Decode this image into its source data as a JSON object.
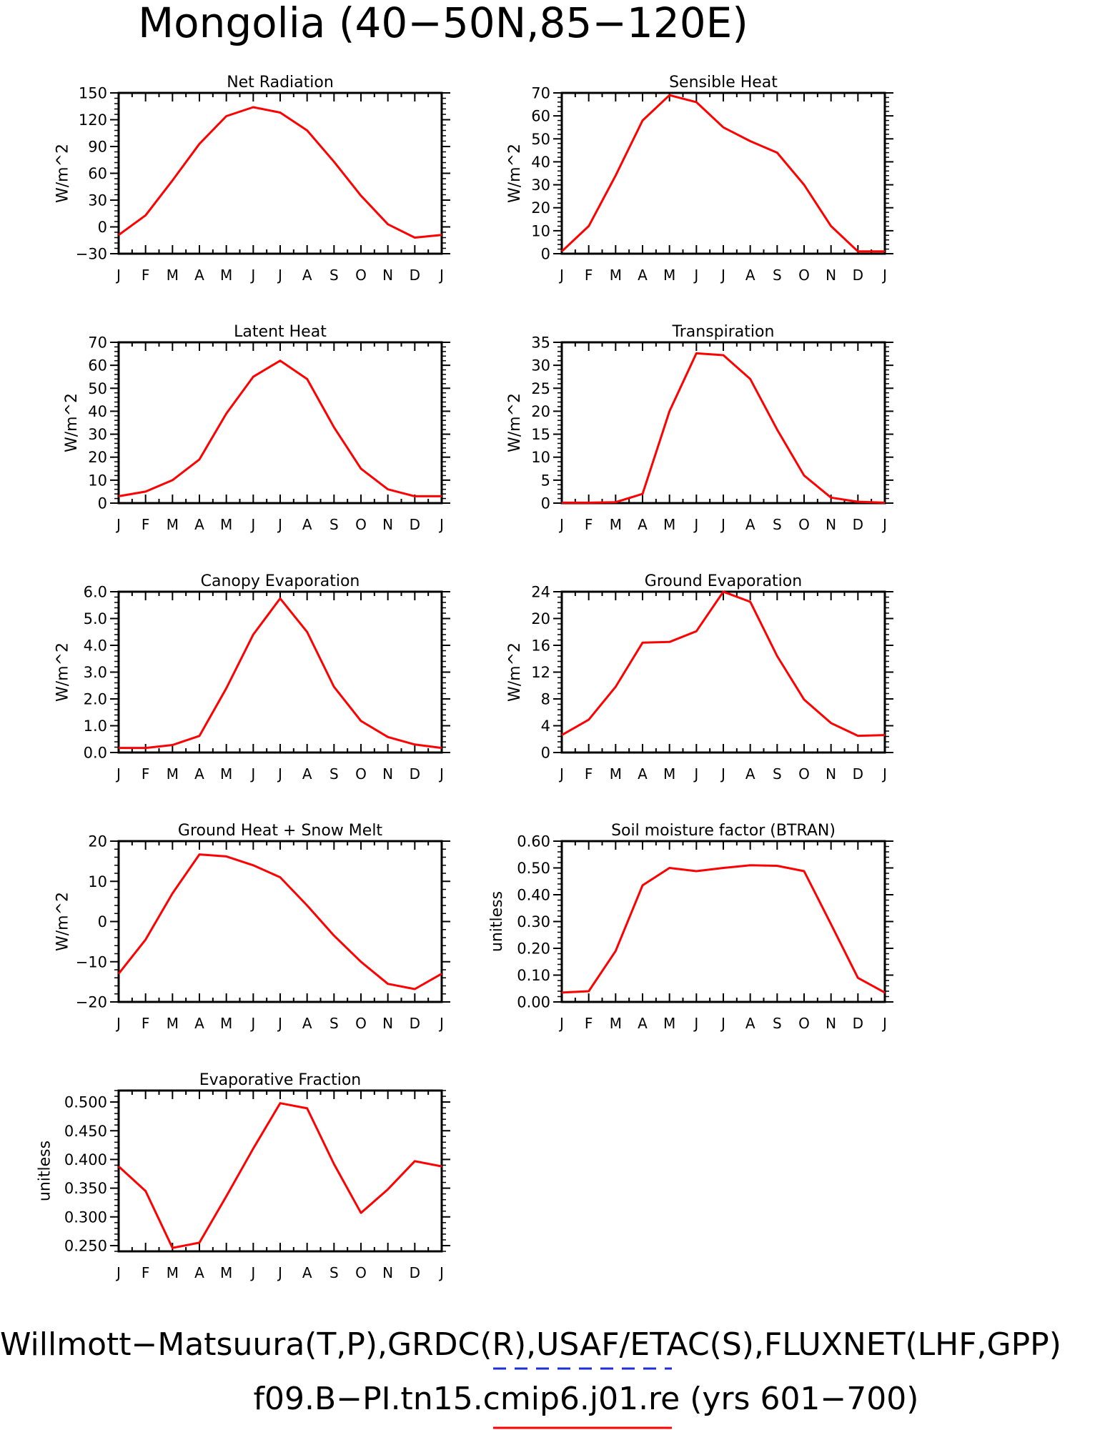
{
  "page_title": "Mongolia (40−50N,85−120E)",
  "footer": {
    "sources": "Willmott−Matsuura(T,P),GRDC(R),USAF/ETAC(S),FLUXNET(LHF,GPP)",
    "case": "f09.B−PI.tn15.cmip6.j01.re (yrs 601−700)",
    "obs_line_color": "#1f2fd8",
    "model_line_color": "#ff0000"
  },
  "months": [
    "J",
    "F",
    "M",
    "A",
    "M",
    "J",
    "J",
    "A",
    "S",
    "O",
    "N",
    "D",
    "J"
  ],
  "series_color": "#ff0000",
  "chart_data": [
    {
      "type": "line",
      "title": "Net Radiation",
      "ylabel": "W/m^2",
      "ylim": [
        -30,
        150
      ],
      "yticks": [
        -30,
        0,
        30,
        60,
        90,
        120,
        150
      ],
      "ytick_labels": [
        "−30",
        "0",
        "30",
        "60",
        "90",
        "120",
        "150"
      ],
      "values": [
        -9,
        13,
        52,
        93,
        124,
        134,
        128,
        108,
        73,
        35,
        3,
        -12,
        -9
      ]
    },
    {
      "type": "line",
      "title": "Sensible Heat",
      "ylabel": "W/m^2",
      "ylim": [
        0,
        70
      ],
      "yticks": [
        0,
        10,
        20,
        30,
        40,
        50,
        60,
        70
      ],
      "ytick_labels": [
        "0",
        "10",
        "20",
        "30",
        "40",
        "50",
        "60",
        "70"
      ],
      "values": [
        1,
        12,
        34,
        58,
        69,
        66,
        55,
        49,
        44,
        30,
        12,
        1,
        1
      ]
    },
    {
      "type": "line",
      "title": "Latent Heat",
      "ylabel": "W/m^2",
      "ylim": [
        0,
        70
      ],
      "yticks": [
        0,
        10,
        20,
        30,
        40,
        50,
        60,
        70
      ],
      "ytick_labels": [
        "0",
        "10",
        "20",
        "30",
        "40",
        "50",
        "60",
        "70"
      ],
      "values": [
        3,
        5,
        10,
        19,
        39,
        55,
        62,
        54,
        33,
        15,
        6,
        3,
        3
      ]
    },
    {
      "type": "line",
      "title": "Transpiration",
      "ylabel": "W/m^2",
      "ylim": [
        0,
        35
      ],
      "yticks": [
        0,
        5,
        10,
        15,
        20,
        25,
        30,
        35
      ],
      "ytick_labels": [
        "0",
        "5",
        "10",
        "15",
        "20",
        "25",
        "30",
        "35"
      ],
      "values": [
        0.1,
        0.1,
        0.2,
        2,
        20,
        32.6,
        32.2,
        27,
        16,
        6,
        1.2,
        0.3,
        0.1
      ]
    },
    {
      "type": "line",
      "title": "Canopy Evaporation",
      "ylabel": "W/m^2",
      "ylim": [
        0,
        6
      ],
      "yticks": [
        0,
        1,
        2,
        3,
        4,
        5,
        6
      ],
      "ytick_labels": [
        "0.0",
        "1.0",
        "2.0",
        "3.0",
        "4.0",
        "5.0",
        "6.0"
      ],
      "values": [
        0.17,
        0.17,
        0.28,
        0.62,
        2.4,
        4.4,
        5.75,
        4.5,
        2.45,
        1.18,
        0.58,
        0.3,
        0.17
      ]
    },
    {
      "type": "line",
      "title": "Ground Evaporation",
      "ylabel": "W/m^2",
      "ylim": [
        0,
        24
      ],
      "yticks": [
        0,
        4,
        8,
        12,
        16,
        20,
        24
      ],
      "ytick_labels": [
        "0",
        "4",
        "8",
        "12",
        "16",
        "20",
        "24"
      ],
      "values": [
        2.6,
        4.9,
        9.8,
        16.4,
        16.5,
        18.1,
        24,
        22.5,
        14.4,
        7.9,
        4.4,
        2.5,
        2.6
      ]
    },
    {
      "type": "line",
      "title": "Ground Heat + Snow Melt",
      "ylabel": "W/m^2",
      "ylim": [
        -20,
        20
      ],
      "yticks": [
        -20,
        -10,
        0,
        10,
        20
      ],
      "ytick_labels": [
        "−20",
        "−10",
        "0",
        "10",
        "20"
      ],
      "values": [
        -13,
        -4.5,
        7,
        16.7,
        16.2,
        14,
        11,
        4,
        -3.5,
        -10,
        -15.5,
        -16.8,
        -13
      ]
    },
    {
      "type": "line",
      "title": "Soil moisture factor (BTRAN)",
      "ylabel": "unitless",
      "ylim": [
        0,
        0.6
      ],
      "yticks": [
        0,
        0.1,
        0.2,
        0.3,
        0.4,
        0.5,
        0.6
      ],
      "ytick_labels": [
        "0.00",
        "0.10",
        "0.20",
        "0.30",
        "0.40",
        "0.50",
        "0.60"
      ],
      "values": [
        0.035,
        0.04,
        0.19,
        0.435,
        0.5,
        0.488,
        0.5,
        0.51,
        0.508,
        0.488,
        0.29,
        0.09,
        0.035
      ]
    },
    {
      "type": "line",
      "title": "Evaporative Fraction",
      "ylabel": "unitless",
      "ylim": [
        0.24,
        0.52
      ],
      "yticks": [
        0.25,
        0.3,
        0.35,
        0.4,
        0.45,
        0.5
      ],
      "ytick_labels": [
        "0.250",
        "0.300",
        "0.350",
        "0.400",
        "0.450",
        "0.500"
      ],
      "values": [
        0.388,
        0.345,
        0.246,
        0.255,
        0.336,
        0.419,
        0.498,
        0.489,
        0.392,
        0.307,
        0.348,
        0.397,
        0.388
      ]
    }
  ]
}
